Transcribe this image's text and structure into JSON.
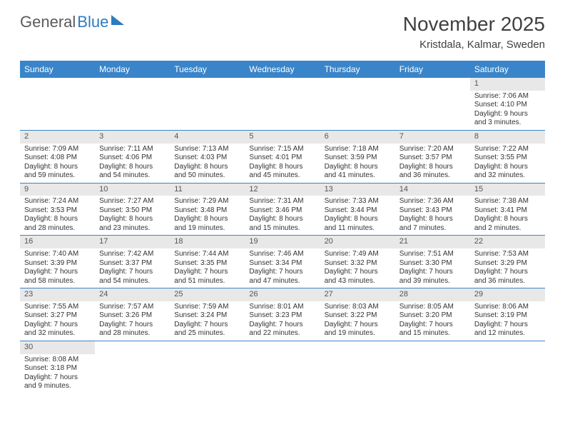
{
  "logo": {
    "part1": "General",
    "part2": "Blue"
  },
  "title": "November 2025",
  "subtitle": "Kristdala, Kalmar, Sweden",
  "colors": {
    "header_bg": "#3a85c9",
    "header_fg": "#ffffff",
    "daynum_bg": "#e8e8e8",
    "row_border": "#3a85c9",
    "title_fg": "#404040",
    "logo_gray": "#5a5a5a",
    "logo_blue": "#2e7bc0"
  },
  "day_headers": [
    "Sunday",
    "Monday",
    "Tuesday",
    "Wednesday",
    "Thursday",
    "Friday",
    "Saturday"
  ],
  "weeks": [
    [
      null,
      null,
      null,
      null,
      null,
      null,
      {
        "n": "1",
        "sr": "Sunrise: 7:06 AM",
        "ss": "Sunset: 4:10 PM",
        "dl": "Daylight: 9 hours and 3 minutes."
      }
    ],
    [
      {
        "n": "2",
        "sr": "Sunrise: 7:09 AM",
        "ss": "Sunset: 4:08 PM",
        "dl": "Daylight: 8 hours and 59 minutes."
      },
      {
        "n": "3",
        "sr": "Sunrise: 7:11 AM",
        "ss": "Sunset: 4:06 PM",
        "dl": "Daylight: 8 hours and 54 minutes."
      },
      {
        "n": "4",
        "sr": "Sunrise: 7:13 AM",
        "ss": "Sunset: 4:03 PM",
        "dl": "Daylight: 8 hours and 50 minutes."
      },
      {
        "n": "5",
        "sr": "Sunrise: 7:15 AM",
        "ss": "Sunset: 4:01 PM",
        "dl": "Daylight: 8 hours and 45 minutes."
      },
      {
        "n": "6",
        "sr": "Sunrise: 7:18 AM",
        "ss": "Sunset: 3:59 PM",
        "dl": "Daylight: 8 hours and 41 minutes."
      },
      {
        "n": "7",
        "sr": "Sunrise: 7:20 AM",
        "ss": "Sunset: 3:57 PM",
        "dl": "Daylight: 8 hours and 36 minutes."
      },
      {
        "n": "8",
        "sr": "Sunrise: 7:22 AM",
        "ss": "Sunset: 3:55 PM",
        "dl": "Daylight: 8 hours and 32 minutes."
      }
    ],
    [
      {
        "n": "9",
        "sr": "Sunrise: 7:24 AM",
        "ss": "Sunset: 3:53 PM",
        "dl": "Daylight: 8 hours and 28 minutes."
      },
      {
        "n": "10",
        "sr": "Sunrise: 7:27 AM",
        "ss": "Sunset: 3:50 PM",
        "dl": "Daylight: 8 hours and 23 minutes."
      },
      {
        "n": "11",
        "sr": "Sunrise: 7:29 AM",
        "ss": "Sunset: 3:48 PM",
        "dl": "Daylight: 8 hours and 19 minutes."
      },
      {
        "n": "12",
        "sr": "Sunrise: 7:31 AM",
        "ss": "Sunset: 3:46 PM",
        "dl": "Daylight: 8 hours and 15 minutes."
      },
      {
        "n": "13",
        "sr": "Sunrise: 7:33 AM",
        "ss": "Sunset: 3:44 PM",
        "dl": "Daylight: 8 hours and 11 minutes."
      },
      {
        "n": "14",
        "sr": "Sunrise: 7:36 AM",
        "ss": "Sunset: 3:43 PM",
        "dl": "Daylight: 8 hours and 7 minutes."
      },
      {
        "n": "15",
        "sr": "Sunrise: 7:38 AM",
        "ss": "Sunset: 3:41 PM",
        "dl": "Daylight: 8 hours and 2 minutes."
      }
    ],
    [
      {
        "n": "16",
        "sr": "Sunrise: 7:40 AM",
        "ss": "Sunset: 3:39 PM",
        "dl": "Daylight: 7 hours and 58 minutes."
      },
      {
        "n": "17",
        "sr": "Sunrise: 7:42 AM",
        "ss": "Sunset: 3:37 PM",
        "dl": "Daylight: 7 hours and 54 minutes."
      },
      {
        "n": "18",
        "sr": "Sunrise: 7:44 AM",
        "ss": "Sunset: 3:35 PM",
        "dl": "Daylight: 7 hours and 51 minutes."
      },
      {
        "n": "19",
        "sr": "Sunrise: 7:46 AM",
        "ss": "Sunset: 3:34 PM",
        "dl": "Daylight: 7 hours and 47 minutes."
      },
      {
        "n": "20",
        "sr": "Sunrise: 7:49 AM",
        "ss": "Sunset: 3:32 PM",
        "dl": "Daylight: 7 hours and 43 minutes."
      },
      {
        "n": "21",
        "sr": "Sunrise: 7:51 AM",
        "ss": "Sunset: 3:30 PM",
        "dl": "Daylight: 7 hours and 39 minutes."
      },
      {
        "n": "22",
        "sr": "Sunrise: 7:53 AM",
        "ss": "Sunset: 3:29 PM",
        "dl": "Daylight: 7 hours and 36 minutes."
      }
    ],
    [
      {
        "n": "23",
        "sr": "Sunrise: 7:55 AM",
        "ss": "Sunset: 3:27 PM",
        "dl": "Daylight: 7 hours and 32 minutes."
      },
      {
        "n": "24",
        "sr": "Sunrise: 7:57 AM",
        "ss": "Sunset: 3:26 PM",
        "dl": "Daylight: 7 hours and 28 minutes."
      },
      {
        "n": "25",
        "sr": "Sunrise: 7:59 AM",
        "ss": "Sunset: 3:24 PM",
        "dl": "Daylight: 7 hours and 25 minutes."
      },
      {
        "n": "26",
        "sr": "Sunrise: 8:01 AM",
        "ss": "Sunset: 3:23 PM",
        "dl": "Daylight: 7 hours and 22 minutes."
      },
      {
        "n": "27",
        "sr": "Sunrise: 8:03 AM",
        "ss": "Sunset: 3:22 PM",
        "dl": "Daylight: 7 hours and 19 minutes."
      },
      {
        "n": "28",
        "sr": "Sunrise: 8:05 AM",
        "ss": "Sunset: 3:20 PM",
        "dl": "Daylight: 7 hours and 15 minutes."
      },
      {
        "n": "29",
        "sr": "Sunrise: 8:06 AM",
        "ss": "Sunset: 3:19 PM",
        "dl": "Daylight: 7 hours and 12 minutes."
      }
    ],
    [
      {
        "n": "30",
        "sr": "Sunrise: 8:08 AM",
        "ss": "Sunset: 3:18 PM",
        "dl": "Daylight: 7 hours and 9 minutes."
      },
      null,
      null,
      null,
      null,
      null,
      null
    ]
  ]
}
